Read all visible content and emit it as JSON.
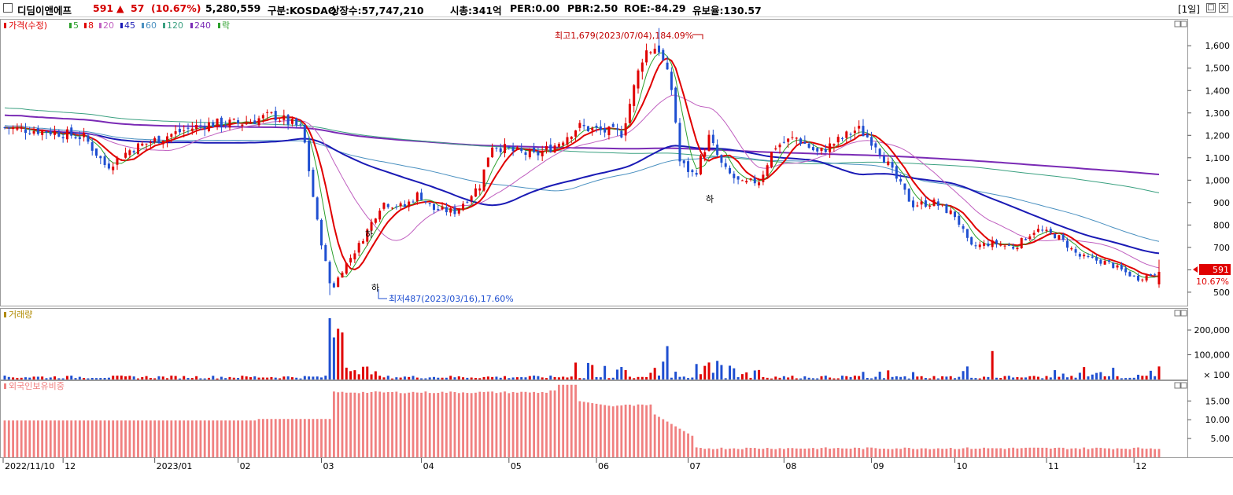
{
  "header": {
    "name": "디딤이앤에프",
    "price": "591",
    "arrow": "▲",
    "change": "57",
    "pct": "(10.67%)",
    "volume": "5,280,559",
    "market": "구분:KOSDAQ",
    "shares": "상장수:57,747,210",
    "mcap": "시총:341억",
    "per": "PER:0.00",
    "pbr": "PBR:2.50",
    "roe": "ROE:-84.29",
    "retention": "유보율:130.57",
    "period": "[1일]"
  },
  "colors": {
    "up": "#e00000",
    "down": "#1f4fd1",
    "ma5": "#2ca02c",
    "ma8": "#e00000",
    "ma20": "#c060c0",
    "ma45": "#1a1ab5",
    "ma60": "#4a90c0",
    "ma120": "#3aa080",
    "ma240": "#7a2ab5",
    "volume_label": "#b08a00",
    "foreign": "#f08080"
  },
  "legend": {
    "price": "가격(수정)",
    "items": [
      {
        "label": "5",
        "color": "#2ca02c"
      },
      {
        "label": "8",
        "color": "#e00000"
      },
      {
        "label": "20",
        "color": "#c060c0"
      },
      {
        "label": "45",
        "color": "#1a1ab5"
      },
      {
        "label": "60",
        "color": "#4a90c0"
      },
      {
        "label": "120",
        "color": "#3aa080"
      },
      {
        "label": "240",
        "color": "#7a2ab5"
      },
      {
        "label": "락",
        "color": "#2ca02c"
      }
    ]
  },
  "annotations": {
    "high": "최고1,679(2023/07/04),184.09%",
    "low": "최저487(2023/03/16),17.60%",
    "ha": "하",
    "last_price": "591",
    "last_pct": "10.67%"
  },
  "volume_panel_title": "거래량",
  "foreign_panel_title": "외국인보유비중",
  "chart_data": [
    {
      "type": "candlestick",
      "title": "가격(수정)",
      "ylim": [
        440,
        1720
      ],
      "yticks": [
        "1,600",
        "1,500",
        "1,400",
        "1,300",
        "1,200",
        "1,100",
        "1,000",
        "900",
        "800",
        "700",
        "600",
        "500"
      ],
      "ytick_values": [
        1600,
        1500,
        1400,
        1300,
        1200,
        1100,
        1000,
        900,
        800,
        700,
        600,
        500
      ],
      "x_labels": [
        "2022/11/10",
        "12",
        "2023/01",
        "02",
        "03",
        "04",
        "05",
        "06",
        "07",
        "08",
        "09",
        "10",
        "11",
        "12"
      ],
      "key_points": [
        {
          "date": "2022/11/10",
          "close": 1230
        },
        {
          "date": "2022/12",
          "close": 1220
        },
        {
          "date": "2023/01",
          "close": 1130
        },
        {
          "date": "2023/02",
          "close": 1240
        },
        {
          "date": "2023/03",
          "close": 1290
        },
        {
          "date": "2023/03/16",
          "low": 487
        },
        {
          "date": "2023/04",
          "close": 890
        },
        {
          "date": "2023/05",
          "close": 860
        },
        {
          "date": "2023/06",
          "close": 1250
        },
        {
          "date": "2023/07/04",
          "high": 1679
        },
        {
          "date": "2023/08",
          "close": 1020
        },
        {
          "date": "2023/09",
          "close": 1200
        },
        {
          "date": "2023/10",
          "close": 900
        },
        {
          "date": "2023/11",
          "close": 720
        },
        {
          "date": "2023/12",
          "close": 591
        }
      ],
      "ma240_endpoint": 1035,
      "ma120_endpoint": 955,
      "ma60_endpoint": 740,
      "ma45_endpoint": 670,
      "last_close": 591,
      "last_change_pct": 10.67
    },
    {
      "type": "bar",
      "title": "거래량",
      "yticks": [
        "200,000",
        "100,000",
        "× 100"
      ],
      "ytick_values": [
        200000,
        100000
      ],
      "peaks": [
        {
          "date": "2023/03/16",
          "value": 248000
        },
        {
          "date": "2023/03/22",
          "value": 205000
        },
        {
          "date": "2023/07/05",
          "value": 135000
        },
        {
          "date": "2023/10/25",
          "value": 115000
        },
        {
          "date": "2023/12/04",
          "value": 52800
        }
      ]
    },
    {
      "type": "bar",
      "title": "외국인보유비중",
      "yticks": [
        "15.00",
        "10.00",
        "5.00"
      ],
      "ytick_values": [
        15,
        10,
        5
      ],
      "segments": [
        {
          "from": "2022/11/10",
          "to": "2023/03/15",
          "value": 9.8
        },
        {
          "from": "2023/03/16",
          "to": "2023/06/01",
          "value": 17.5
        },
        {
          "from": "2023/06/05",
          "value": 19.2
        },
        {
          "from": "2023/06/15",
          "to": "2023/07/01",
          "value": 14.0
        },
        {
          "from": "2023/07/05",
          "to": "2023/07/15",
          "value": 7.0
        },
        {
          "from": "2023/07/20",
          "to": "2023/12/04",
          "value": 2.5
        }
      ]
    }
  ]
}
